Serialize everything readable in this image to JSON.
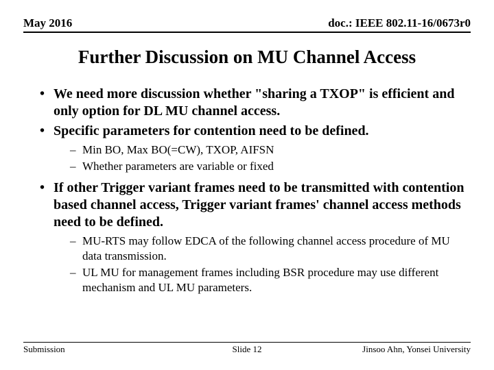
{
  "header": {
    "date": "May 2016",
    "docref": "doc.: IEEE 802.11-16/0673r0"
  },
  "title": "Further Discussion on MU Channel Access",
  "bullets": [
    {
      "text": "We need more discussion whether \"sharing a TXOP\" is efficient and only option for DL MU channel access."
    },
    {
      "text": "Specific parameters for contention need to be defined.",
      "sub": [
        "Min BO, Max BO(=CW), TXOP, AIFSN",
        "Whether parameters are variable or fixed"
      ]
    },
    {
      "text": "If other Trigger variant frames need to be transmitted with contention based channel access, Trigger variant frames' channel access methods need to be defined.",
      "sub": [
        "MU-RTS may follow EDCA of the following channel access procedure of MU data transmission.",
        "UL MU for management frames including BSR procedure may use different mechanism and UL MU parameters."
      ]
    }
  ],
  "footer": {
    "left": "Submission",
    "center": "Slide 12",
    "right": "Jinsoo Ahn, Yonsei University"
  }
}
